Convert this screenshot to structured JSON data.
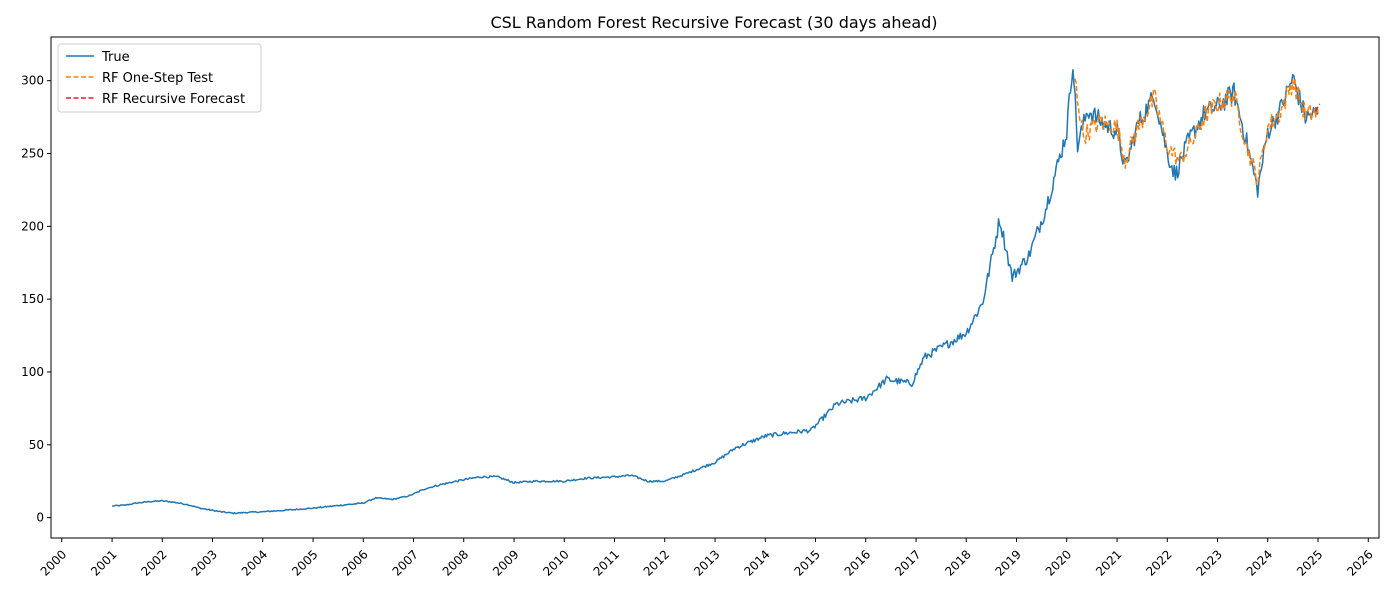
{
  "chart_data": {
    "type": "line",
    "title": "CSL Random Forest Recursive Forecast (30 days ahead)",
    "xlabel": "",
    "ylabel": "",
    "x_axis_type": "date",
    "xlim": [
      "1999-10-15",
      "2026-03-20"
    ],
    "ylim": [
      -14,
      330
    ],
    "x_ticks": [
      "2000",
      "2001",
      "2002",
      "2003",
      "2004",
      "2005",
      "2006",
      "2007",
      "2008",
      "2009",
      "2010",
      "2011",
      "2012",
      "2013",
      "2014",
      "2015",
      "2016",
      "2017",
      "2018",
      "2019",
      "2020",
      "2021",
      "2022",
      "2023",
      "2024",
      "2025",
      "2026"
    ],
    "y_ticks": [
      "0",
      "50",
      "100",
      "150",
      "200",
      "250",
      "300"
    ],
    "grid": false,
    "legend": {
      "placement": "top-left",
      "entries": [
        "True",
        "RF One-Step Test",
        "RF Recursive Forecast"
      ]
    },
    "series": [
      {
        "name": "True",
        "color": "#1f77b4",
        "style": "solid",
        "points": [
          [
            "2001-01-01",
            8
          ],
          [
            "2001-04-01",
            8.5
          ],
          [
            "2001-07-01",
            10
          ],
          [
            "2001-10-01",
            11
          ],
          [
            "2002-01-01",
            11.5
          ],
          [
            "2002-04-01",
            10.5
          ],
          [
            "2002-07-01",
            9
          ],
          [
            "2002-10-01",
            6.5
          ],
          [
            "2003-01-01",
            5
          ],
          [
            "2003-03-01",
            4
          ],
          [
            "2003-06-01",
            3
          ],
          [
            "2003-09-01",
            3.5
          ],
          [
            "2004-01-01",
            4
          ],
          [
            "2004-06-01",
            5
          ],
          [
            "2005-01-01",
            6.5
          ],
          [
            "2005-06-01",
            8
          ],
          [
            "2006-01-01",
            10
          ],
          [
            "2006-04-01",
            13.5
          ],
          [
            "2006-08-01",
            12.5
          ],
          [
            "2006-12-01",
            15
          ],
          [
            "2007-04-01",
            20
          ],
          [
            "2007-08-01",
            23
          ],
          [
            "2008-01-01",
            26
          ],
          [
            "2008-05-01",
            28
          ],
          [
            "2008-09-01",
            28
          ],
          [
            "2009-01-01",
            24
          ],
          [
            "2009-06-01",
            25
          ],
          [
            "2010-01-01",
            25
          ],
          [
            "2010-06-01",
            27
          ],
          [
            "2011-01-01",
            28
          ],
          [
            "2011-05-01",
            29
          ],
          [
            "2011-09-01",
            25
          ],
          [
            "2012-01-01",
            25
          ],
          [
            "2012-06-01",
            30
          ],
          [
            "2013-01-01",
            38
          ],
          [
            "2013-06-01",
            48
          ],
          [
            "2014-01-01",
            56
          ],
          [
            "2014-06-01",
            58
          ],
          [
            "2014-12-01",
            60
          ],
          [
            "2015-06-01",
            78
          ],
          [
            "2016-01-01",
            82
          ],
          [
            "2016-06-01",
            95
          ],
          [
            "2016-12-01",
            92
          ],
          [
            "2017-03-01",
            110
          ],
          [
            "2017-09-01",
            120
          ],
          [
            "2018-01-01",
            127
          ],
          [
            "2018-05-01",
            148
          ],
          [
            "2018-09-01",
            205
          ],
          [
            "2018-12-01",
            165
          ],
          [
            "2019-04-01",
            180
          ],
          [
            "2019-08-01",
            212
          ],
          [
            "2020-01-01",
            265
          ],
          [
            "2020-02-15",
            315
          ],
          [
            "2020-03-20",
            255
          ],
          [
            "2020-06-01",
            280
          ],
          [
            "2020-10-01",
            270
          ],
          [
            "2021-01-01",
            265
          ],
          [
            "2021-03-01",
            240
          ],
          [
            "2021-06-01",
            270
          ],
          [
            "2021-10-01",
            290
          ],
          [
            "2022-01-01",
            250
          ],
          [
            "2022-03-01",
            235
          ],
          [
            "2022-06-01",
            258
          ],
          [
            "2022-10-01",
            278
          ],
          [
            "2023-01-01",
            282
          ],
          [
            "2023-05-01",
            292
          ],
          [
            "2023-08-01",
            258
          ],
          [
            "2023-10-20",
            225
          ],
          [
            "2024-01-01",
            265
          ],
          [
            "2024-04-01",
            280
          ],
          [
            "2024-07-01",
            302
          ],
          [
            "2024-10-01",
            275
          ],
          [
            "2025-01-01",
            278
          ]
        ]
      },
      {
        "name": "RF One-Step Test",
        "color": "#ff7f0e",
        "style": "dashed",
        "points": [
          [
            "2020-03-01",
            300
          ],
          [
            "2020-05-01",
            262
          ],
          [
            "2020-09-01",
            272
          ],
          [
            "2021-01-01",
            268
          ],
          [
            "2021-03-01",
            245
          ],
          [
            "2021-06-01",
            268
          ],
          [
            "2021-10-01",
            288
          ],
          [
            "2022-01-01",
            255
          ],
          [
            "2022-04-01",
            245
          ],
          [
            "2022-07-01",
            258
          ],
          [
            "2022-10-01",
            276
          ],
          [
            "2023-01-01",
            284
          ],
          [
            "2023-05-01",
            290
          ],
          [
            "2023-08-01",
            255
          ],
          [
            "2023-10-20",
            232
          ],
          [
            "2024-01-01",
            268
          ],
          [
            "2024-04-01",
            278
          ],
          [
            "2024-07-01",
            300
          ],
          [
            "2024-10-01",
            277
          ],
          [
            "2025-01-01",
            278
          ]
        ]
      },
      {
        "name": "RF Recursive Forecast",
        "color": "#d62728",
        "style": "dashed",
        "points": [
          [
            "2024-12-15",
            279
          ],
          [
            "2024-12-25",
            281
          ],
          [
            "2025-01-05",
            283
          ],
          [
            "2025-01-14",
            284
          ]
        ]
      }
    ]
  }
}
